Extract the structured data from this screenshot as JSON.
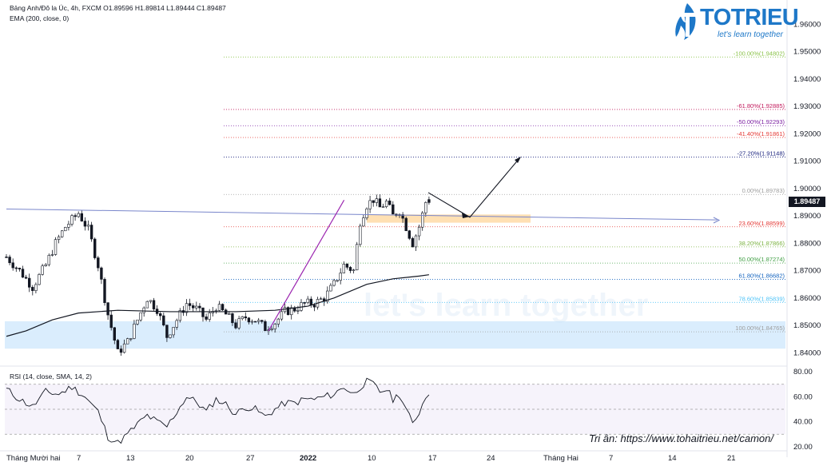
{
  "header": {
    "symbol_line": "Bảng Anh/Đô la Úc, 4h, FXCM  O1.89596  H1.89814  L1.89444  C1.89487",
    "ema_line": "EMA (200, close, 0)",
    "rsi_line": "RSI (14, close, SMA, 14, 2)"
  },
  "logo": {
    "name": "TOTRIEU",
    "tagline": "let's learn together",
    "watermark": "let's learn together"
  },
  "credit": "Tri ân: https://www.tohaitrieu.net/camon/",
  "current_price": "1.89487",
  "colors": {
    "up": "#131722",
    "down": "#131722",
    "ema": "#131722",
    "rsi": "#7e57c2",
    "trend": "#9c27b0",
    "support_zone": "#bbdefb",
    "resistance_zone": "#ffcc80",
    "accent": "#1e78c8"
  },
  "chart_data": [
    {
      "type": "candlestick",
      "symbol": "Bảng Anh/Đô la Úc, 4h, FXCM",
      "y_range": [
        1.836,
        1.9665
      ],
      "y_ticks": [
        "1.96000",
        "1.95000",
        "1.94000",
        "1.93000",
        "1.92000",
        "1.91000",
        "1.90000",
        "1.89000",
        "1.88000",
        "1.87000",
        "1.86000",
        "1.85000",
        "1.84000"
      ],
      "x_ticks": [
        "Tháng Mười hai",
        "7",
        "13",
        "20",
        "27",
        "2022",
        "10",
        "17",
        "24",
        "Tháng Hai",
        "7",
        "14",
        "21"
      ],
      "ohlc": {
        "open": 1.89596,
        "high": 1.89814,
        "low": 1.89444,
        "close": 1.89487
      },
      "price_path": [
        [
          0,
          1.875
        ],
        [
          4,
          1.87
        ],
        [
          8,
          1.864
        ],
        [
          12,
          1.872
        ],
        [
          15,
          1.88
        ],
        [
          18,
          1.886
        ],
        [
          22,
          1.891
        ],
        [
          25,
          1.885
        ],
        [
          28,
          1.872
        ],
        [
          31,
          1.854
        ],
        [
          34,
          1.84
        ],
        [
          37,
          1.844
        ],
        [
          40,
          1.852
        ],
        [
          43,
          1.86
        ],
        [
          46,
          1.856
        ],
        [
          49,
          1.846
        ],
        [
          52,
          1.852
        ],
        [
          55,
          1.858
        ],
        [
          58,
          1.856
        ],
        [
          61,
          1.852
        ],
        [
          64,
          1.857
        ],
        [
          67,
          1.854
        ],
        [
          70,
          1.85
        ],
        [
          73,
          1.853
        ],
        [
          76,
          1.852
        ],
        [
          79,
          1.849
        ],
        [
          82,
          1.851
        ],
        [
          85,
          1.855
        ],
        [
          88,
          1.856
        ],
        [
          91,
          1.858
        ],
        [
          94,
          1.858
        ],
        [
          97,
          1.86
        ],
        [
          100,
          1.865
        ],
        [
          103,
          1.872
        ],
        [
          106,
          1.87
        ],
        [
          108,
          1.888
        ],
        [
          110,
          1.894
        ],
        [
          112,
          1.896
        ],
        [
          114,
          1.893
        ],
        [
          116,
          1.895
        ],
        [
          118,
          1.89
        ],
        [
          120,
          1.892
        ],
        [
          122,
          1.886
        ],
        [
          124,
          1.88
        ],
        [
          126,
          1.886
        ],
        [
          128,
          1.895
        ],
        [
          129,
          1.8975
        ]
      ],
      "ema200_path": [
        [
          0,
          1.846
        ],
        [
          6,
          1.848
        ],
        [
          14,
          1.852
        ],
        [
          22,
          1.8545
        ],
        [
          34,
          1.8555
        ],
        [
          50,
          1.855
        ],
        [
          70,
          1.855
        ],
        [
          82,
          1.8555
        ],
        [
          92,
          1.857
        ],
        [
          100,
          1.86
        ],
        [
          110,
          1.865
        ],
        [
          118,
          1.867
        ],
        [
          126,
          1.868
        ],
        [
          129,
          1.8685
        ]
      ],
      "fibonacci": [
        {
          "label": "-100.00%(1.94802)",
          "value": 1.94802,
          "color": "#8bc34a"
        },
        {
          "label": "-61.80%(1.92885)",
          "value": 1.92885,
          "color": "#c2185b"
        },
        {
          "label": "-50.00%(1.92293)",
          "value": 1.92293,
          "color": "#7b1fa2"
        },
        {
          "label": "-41.40%(1.91861)",
          "value": 1.91861,
          "color": "#e53935"
        },
        {
          "label": "-27.20%(1.91148)",
          "value": 1.91148,
          "color": "#1a237e"
        },
        {
          "label": "0.00%(1.89783)",
          "value": 1.89783,
          "color": "#9e9e9e"
        },
        {
          "label": "23.60%(1.88599)",
          "value": 1.88599,
          "color": "#e53935"
        },
        {
          "label": "38.20%(1.87866)",
          "value": 1.87866,
          "color": "#7cb342"
        },
        {
          "label": "50.00%(1.87274)",
          "value": 1.87274,
          "color": "#43a047"
        },
        {
          "label": "61.80%(1.86682)",
          "value": 1.86682,
          "color": "#1565c0"
        },
        {
          "label": "78.60%(1.85839)",
          "value": 1.85839,
          "color": "#4fc3f7"
        },
        {
          "label": "100.00%(1.84765)",
          "value": 1.84765,
          "color": "#9e9e9e"
        }
      ],
      "support_zone": [
        1.8415,
        1.8515
      ],
      "resistance_zone": [
        1.8875,
        1.8905
      ],
      "trendline_horizontal": [
        [
          0,
          1.8925
        ],
        [
          134,
          1.8885
        ]
      ],
      "trendline_up": [
        [
          80,
          1.848
        ],
        [
          116,
          1.8975
        ]
      ],
      "projection": [
        [
          129,
          1.8985
        ],
        [
          136,
          1.8895
        ],
        [
          148,
          1.911
        ]
      ]
    },
    {
      "type": "line",
      "title": "RSI (14, close, SMA, 14, 2)",
      "y_ticks": [
        "80.00",
        "60.00",
        "40.00",
        "20.00"
      ],
      "y_range": [
        18,
        82
      ],
      "band": [
        30,
        70
      ],
      "mid": 50,
      "rsi_path": [
        [
          0,
          66
        ],
        [
          4,
          58
        ],
        [
          8,
          52
        ],
        [
          12,
          64
        ],
        [
          16,
          62
        ],
        [
          20,
          68
        ],
        [
          24,
          60
        ],
        [
          28,
          48
        ],
        [
          31,
          28
        ],
        [
          34,
          23
        ],
        [
          37,
          30
        ],
        [
          40,
          38
        ],
        [
          43,
          45
        ],
        [
          46,
          40
        ],
        [
          49,
          36
        ],
        [
          52,
          48
        ],
        [
          55,
          60
        ],
        [
          58,
          56
        ],
        [
          61,
          48
        ],
        [
          64,
          58
        ],
        [
          67,
          54
        ],
        [
          70,
          46
        ],
        [
          73,
          52
        ],
        [
          76,
          50
        ],
        [
          79,
          44
        ],
        [
          82,
          50
        ],
        [
          85,
          55
        ],
        [
          88,
          55
        ],
        [
          91,
          58
        ],
        [
          94,
          58
        ],
        [
          97,
          60
        ],
        [
          100,
          62
        ],
        [
          103,
          68
        ],
        [
          106,
          62
        ],
        [
          108,
          68
        ],
        [
          110,
          72
        ],
        [
          112,
          70
        ],
        [
          114,
          64
        ],
        [
          116,
          66
        ],
        [
          118,
          58
        ],
        [
          120,
          62
        ],
        [
          122,
          50
        ],
        [
          124,
          38
        ],
        [
          126,
          48
        ],
        [
          128,
          60
        ],
        [
          129,
          64
        ]
      ]
    }
  ]
}
